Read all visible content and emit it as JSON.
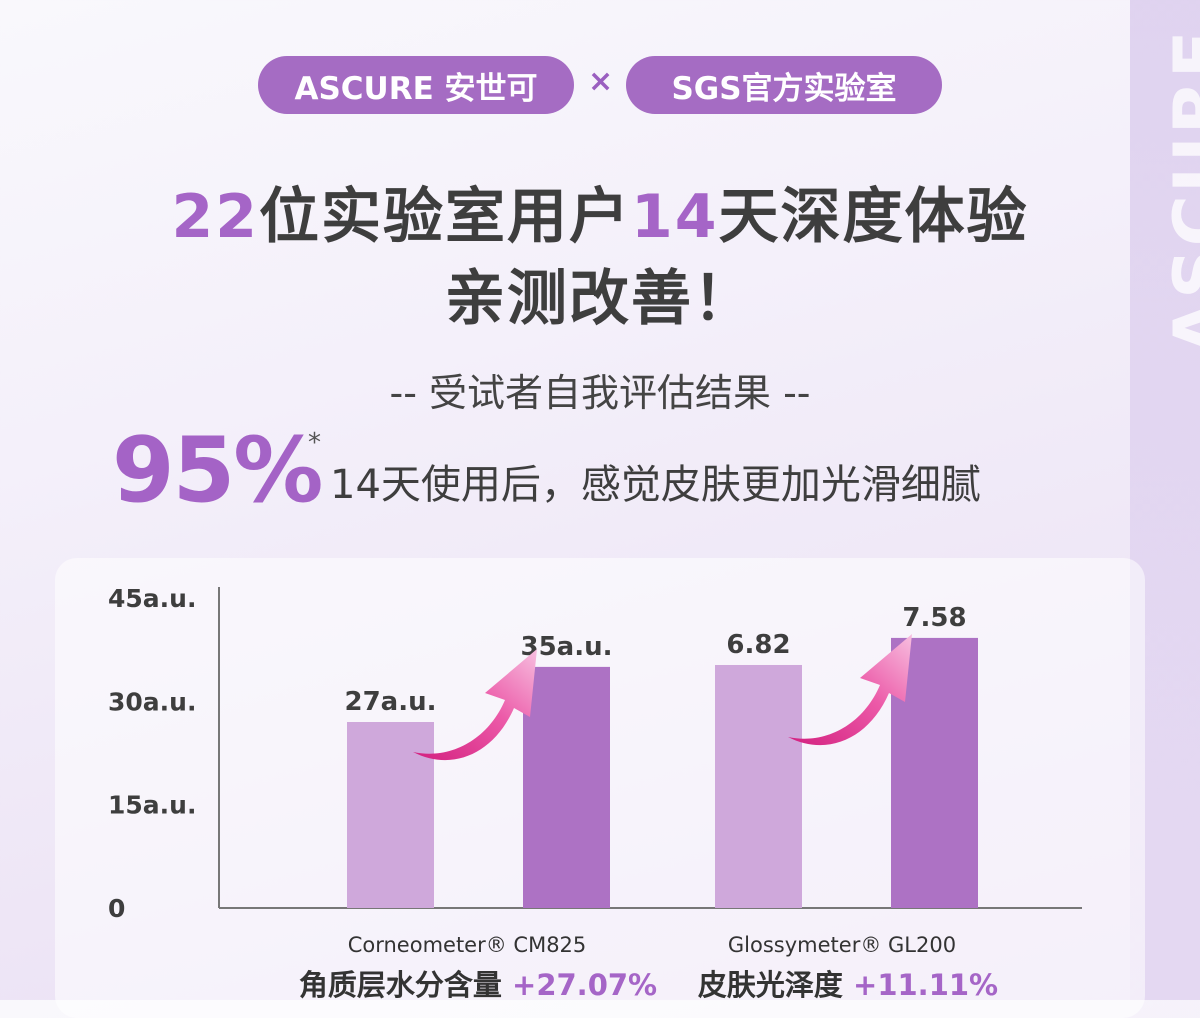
{
  "header": {
    "brand_pill": "ASCURE 安世可",
    "times": "×",
    "lab_pill": "SGS官方实验室",
    "watermark": "ASCURE"
  },
  "headline": {
    "num1": "22",
    "text1": "位实验室用户",
    "num2": "14",
    "text2": "天深度体验",
    "line2": "亲测改善！"
  },
  "subtitle": "-- 受试者自我评估结果 --",
  "stat": {
    "percent": "95%",
    "star": "*",
    "description": "14天使用后，感觉皮肤更加光滑细腻"
  },
  "colors": {
    "accent": "#a565c7",
    "bar_before": "#cfa8db",
    "bar_after": "#ad72c4",
    "arrow": "#e0409a"
  },
  "chart_data": {
    "type": "bar",
    "groups": [
      {
        "name_en": "Corneometer® CM825",
        "name_cn": "角质层水分含量",
        "change": "+27.07%",
        "values": [
          27,
          35
        ],
        "labels": [
          "27a.u.",
          "35a.u."
        ],
        "scale_max": 45
      },
      {
        "name_en": "Glossymeter® GL200",
        "name_cn": "皮肤光泽度",
        "change": "+11.11%",
        "values": [
          6.82,
          7.58
        ],
        "labels": [
          "6.82",
          "7.58"
        ],
        "scale_max": 8.7
      }
    ],
    "yticks": [
      {
        "value": 0,
        "label": "0"
      },
      {
        "value": 15,
        "label": "15a.u."
      },
      {
        "value": 30,
        "label": "30a.u."
      },
      {
        "value": 45,
        "label": "45a.u."
      }
    ],
    "ylim": [
      0,
      45
    ]
  }
}
